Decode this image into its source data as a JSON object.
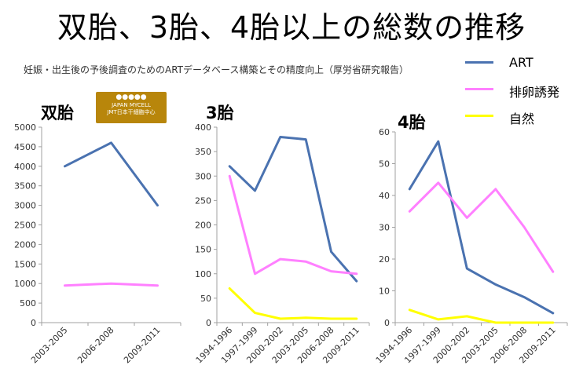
{
  "title": "双胎、3胎、4胎以上の総数の推移",
  "source": "妊娠・出生後の予後調査のためのARTデータベース構築とその精度向上（厚労省研究報告）",
  "logo": {
    "line1": "JAPAN MYCELL",
    "line2": "JMT日本干細胞中心"
  },
  "colors": {
    "ART": "#4a72b0",
    "排卵誘発": "#ff80ff",
    "自然": "#ffff00",
    "axis": "#a0a0a0"
  },
  "legend": [
    {
      "name": "ART",
      "color": "#4a72b0"
    },
    {
      "name": "排卵誘発",
      "color": "#ff80ff"
    },
    {
      "name": "自然",
      "color": "#ffff00"
    }
  ],
  "chart_data": [
    {
      "type": "line",
      "title": "双胎",
      "categories": [
        "2003-2005",
        "2006-2008",
        "2009-2011"
      ],
      "ylim": [
        0,
        5000
      ],
      "yticks": [
        0,
        500,
        1000,
        1500,
        2000,
        2500,
        3000,
        3500,
        4000,
        4500,
        5000
      ],
      "grid": false,
      "series": [
        {
          "name": "ART",
          "values": [
            4000,
            4600,
            3000
          ]
        },
        {
          "name": "排卵誘発",
          "values": [
            950,
            1000,
            950
          ]
        }
      ]
    },
    {
      "type": "line",
      "title": "3胎",
      "categories": [
        "1994-1996",
        "1997-1999",
        "2000-2002",
        "2003-2005",
        "2006-2008",
        "2009-2011"
      ],
      "ylim": [
        0,
        400
      ],
      "yticks": [
        0,
        50,
        100,
        150,
        200,
        250,
        300,
        350,
        400
      ],
      "grid": false,
      "series": [
        {
          "name": "ART",
          "values": [
            320,
            270,
            380,
            375,
            145,
            85
          ]
        },
        {
          "name": "排卵誘発",
          "values": [
            300,
            100,
            130,
            125,
            105,
            100
          ]
        },
        {
          "name": "自然",
          "values": [
            70,
            20,
            8,
            10,
            8,
            8
          ]
        }
      ]
    },
    {
      "type": "line",
      "title": "4胎",
      "categories": [
        "1994-1996",
        "1997-1999",
        "2000-2002",
        "2003-2005",
        "2006-2008",
        "2009-2011"
      ],
      "ylim": [
        0,
        60
      ],
      "yticks": [
        0,
        10,
        20,
        30,
        40,
        50,
        60
      ],
      "grid": false,
      "series": [
        {
          "name": "ART",
          "values": [
            42,
            57,
            17,
            12,
            8,
            3
          ]
        },
        {
          "name": "排卵誘発",
          "values": [
            35,
            44,
            33,
            42,
            30,
            16
          ]
        },
        {
          "name": "自然",
          "values": [
            4,
            1,
            2,
            0,
            0,
            0
          ]
        }
      ]
    }
  ]
}
